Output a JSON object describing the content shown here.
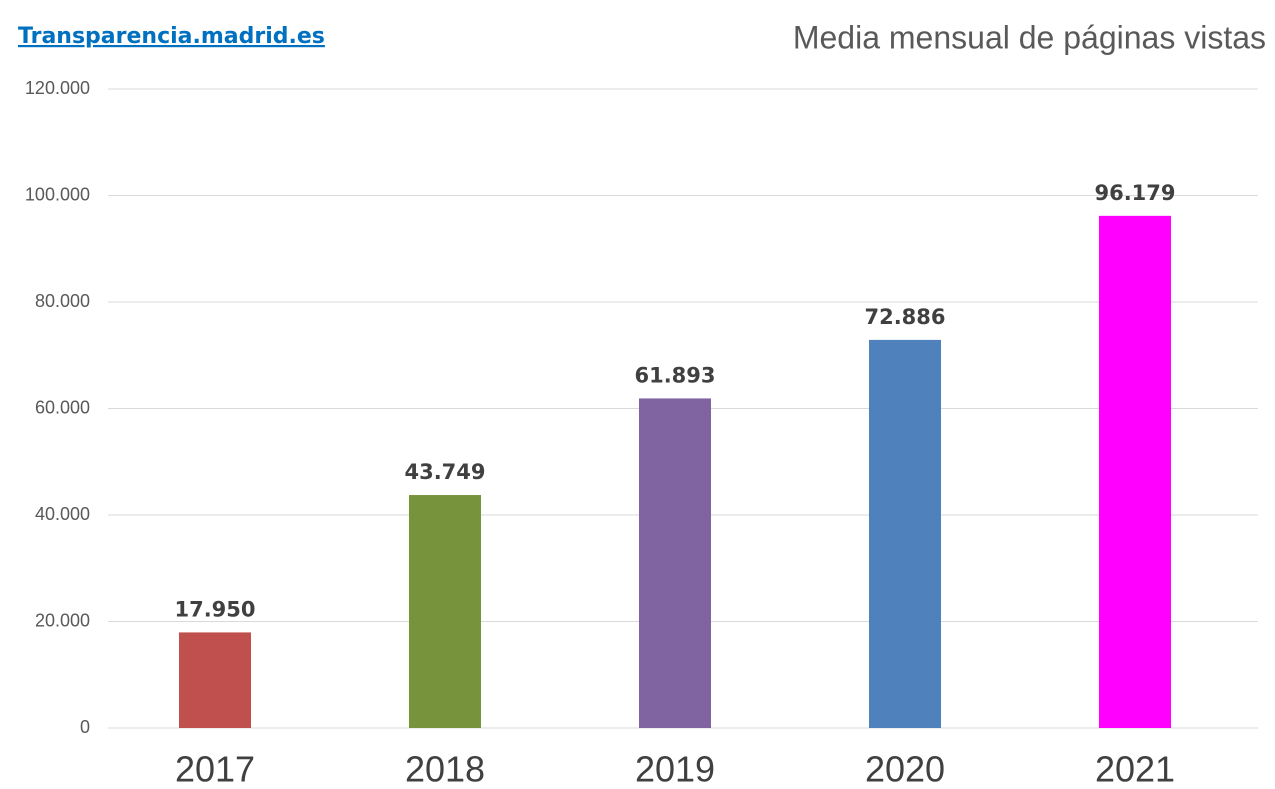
{
  "chart_data": {
    "type": "bar",
    "source": "Transparencia.madrid.es",
    "title": "Media mensual de páginas vistas",
    "categories": [
      "2017",
      "2018",
      "2019",
      "2020",
      "2021"
    ],
    "values": [
      17950,
      43749,
      61893,
      72886,
      96179
    ],
    "value_labels": [
      "17.950",
      "43.749",
      "61.893",
      "72.886",
      "96.179"
    ],
    "colors": [
      "#c0504d",
      "#77933c",
      "#8064a2",
      "#4f81bd",
      "#ff00ff"
    ],
    "ylim": [
      0,
      120000
    ],
    "yticks": [
      0,
      {
        "value": 20000,
        "label": "20.000"
      },
      {
        "value": 40000,
        "label": "40.000"
      },
      {
        "value": 60000,
        "label": "60.000"
      },
      {
        "value": 80000,
        "label": "80.000"
      },
      {
        "value": 100000,
        "label": "100.000"
      },
      {
        "value": 120000,
        "label": "120.000"
      }
    ],
    "grid": true
  }
}
